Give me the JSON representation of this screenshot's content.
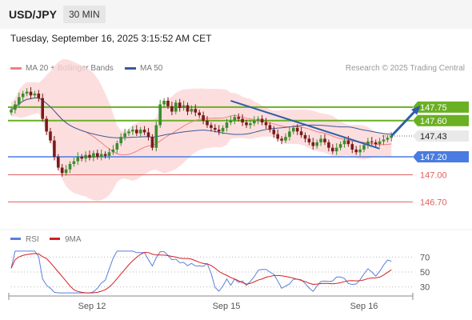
{
  "header": {
    "symbol": "USD/JPY",
    "interval": "30 MIN",
    "datetime": "Tuesday, September 16, 2025 3:15:52 AM CET"
  },
  "legend": {
    "ma20_label": "MA 20 + Bollinger Bands",
    "ma20_color": "#f08080",
    "ma50_label": "MA 50",
    "ma50_color": "#3a5a9a",
    "credit": "Research © 2025 Trading Central"
  },
  "colors": {
    "green_level": "#6ab023",
    "blue_level": "#4a7be0",
    "red_level": "#e06060",
    "last_price": "#444444",
    "arrow": "#2e5fa8",
    "bull": "#3c8c2c",
    "bear": "#7a1a1a",
    "bands": "#fcd6d6"
  },
  "chart_data": [
    {
      "type": "candlestick",
      "title": "",
      "ylim": [
        146.5,
        148.05
      ],
      "x_ticks": [
        "Sep 12",
        "Sep 15",
        "Sep 16"
      ],
      "levels": [
        {
          "value": 147.75,
          "label": "147.75",
          "kind": "resistance"
        },
        {
          "value": 147.6,
          "label": "147.60",
          "kind": "resistance"
        },
        {
          "value": 147.43,
          "label": "147.43",
          "kind": "last"
        },
        {
          "value": 147.2,
          "label": "147.20",
          "kind": "pivot"
        },
        {
          "value": 147.0,
          "label": "147.00",
          "kind": "support"
        },
        {
          "value": 146.7,
          "label": "146.70",
          "kind": "support"
        }
      ],
      "close": [
        147.72,
        147.78,
        147.86,
        147.9,
        147.92,
        147.88,
        147.9,
        147.85,
        147.62,
        147.48,
        147.38,
        147.2,
        147.08,
        147.02,
        147.06,
        147.12,
        147.15,
        147.2,
        147.18,
        147.22,
        147.19,
        147.24,
        147.2,
        147.23,
        147.21,
        147.25,
        147.28,
        147.35,
        147.42,
        147.46,
        147.48,
        147.5,
        147.46,
        147.5,
        147.47,
        147.42,
        147.3,
        147.55,
        147.78,
        147.82,
        147.76,
        147.7,
        147.8,
        147.74,
        147.77,
        147.7,
        147.73,
        147.69,
        147.66,
        147.6,
        147.55,
        147.52,
        147.5,
        147.48,
        147.52,
        147.58,
        147.6,
        147.64,
        147.62,
        147.58,
        147.55,
        147.57,
        147.6,
        147.62,
        147.58,
        147.55,
        147.5,
        147.45,
        147.4,
        147.38,
        147.42,
        147.48,
        147.52,
        147.48,
        147.44,
        147.4,
        147.36,
        147.32,
        147.36,
        147.4,
        147.36,
        147.3,
        147.26,
        147.3,
        147.34,
        147.38,
        147.34,
        147.28,
        147.25,
        147.28,
        147.33,
        147.37,
        147.36,
        147.34,
        147.37,
        147.39,
        147.41,
        147.43
      ],
      "trendline": {
        "from": [
          56,
          147.82
        ],
        "to": [
          94,
          147.29
        ]
      },
      "projection": {
        "from": [
          97,
          147.43
        ],
        "to": [
          104,
          147.75
        ]
      }
    },
    {
      "type": "line",
      "title": "",
      "ylim": [
        20,
        80
      ],
      "y_ticks": [
        70,
        50,
        30
      ],
      "series": [
        {
          "name": "RSI",
          "color": "#5b7fd8"
        },
        {
          "name": "9MA",
          "color": "#d42020"
        }
      ]
    }
  ]
}
